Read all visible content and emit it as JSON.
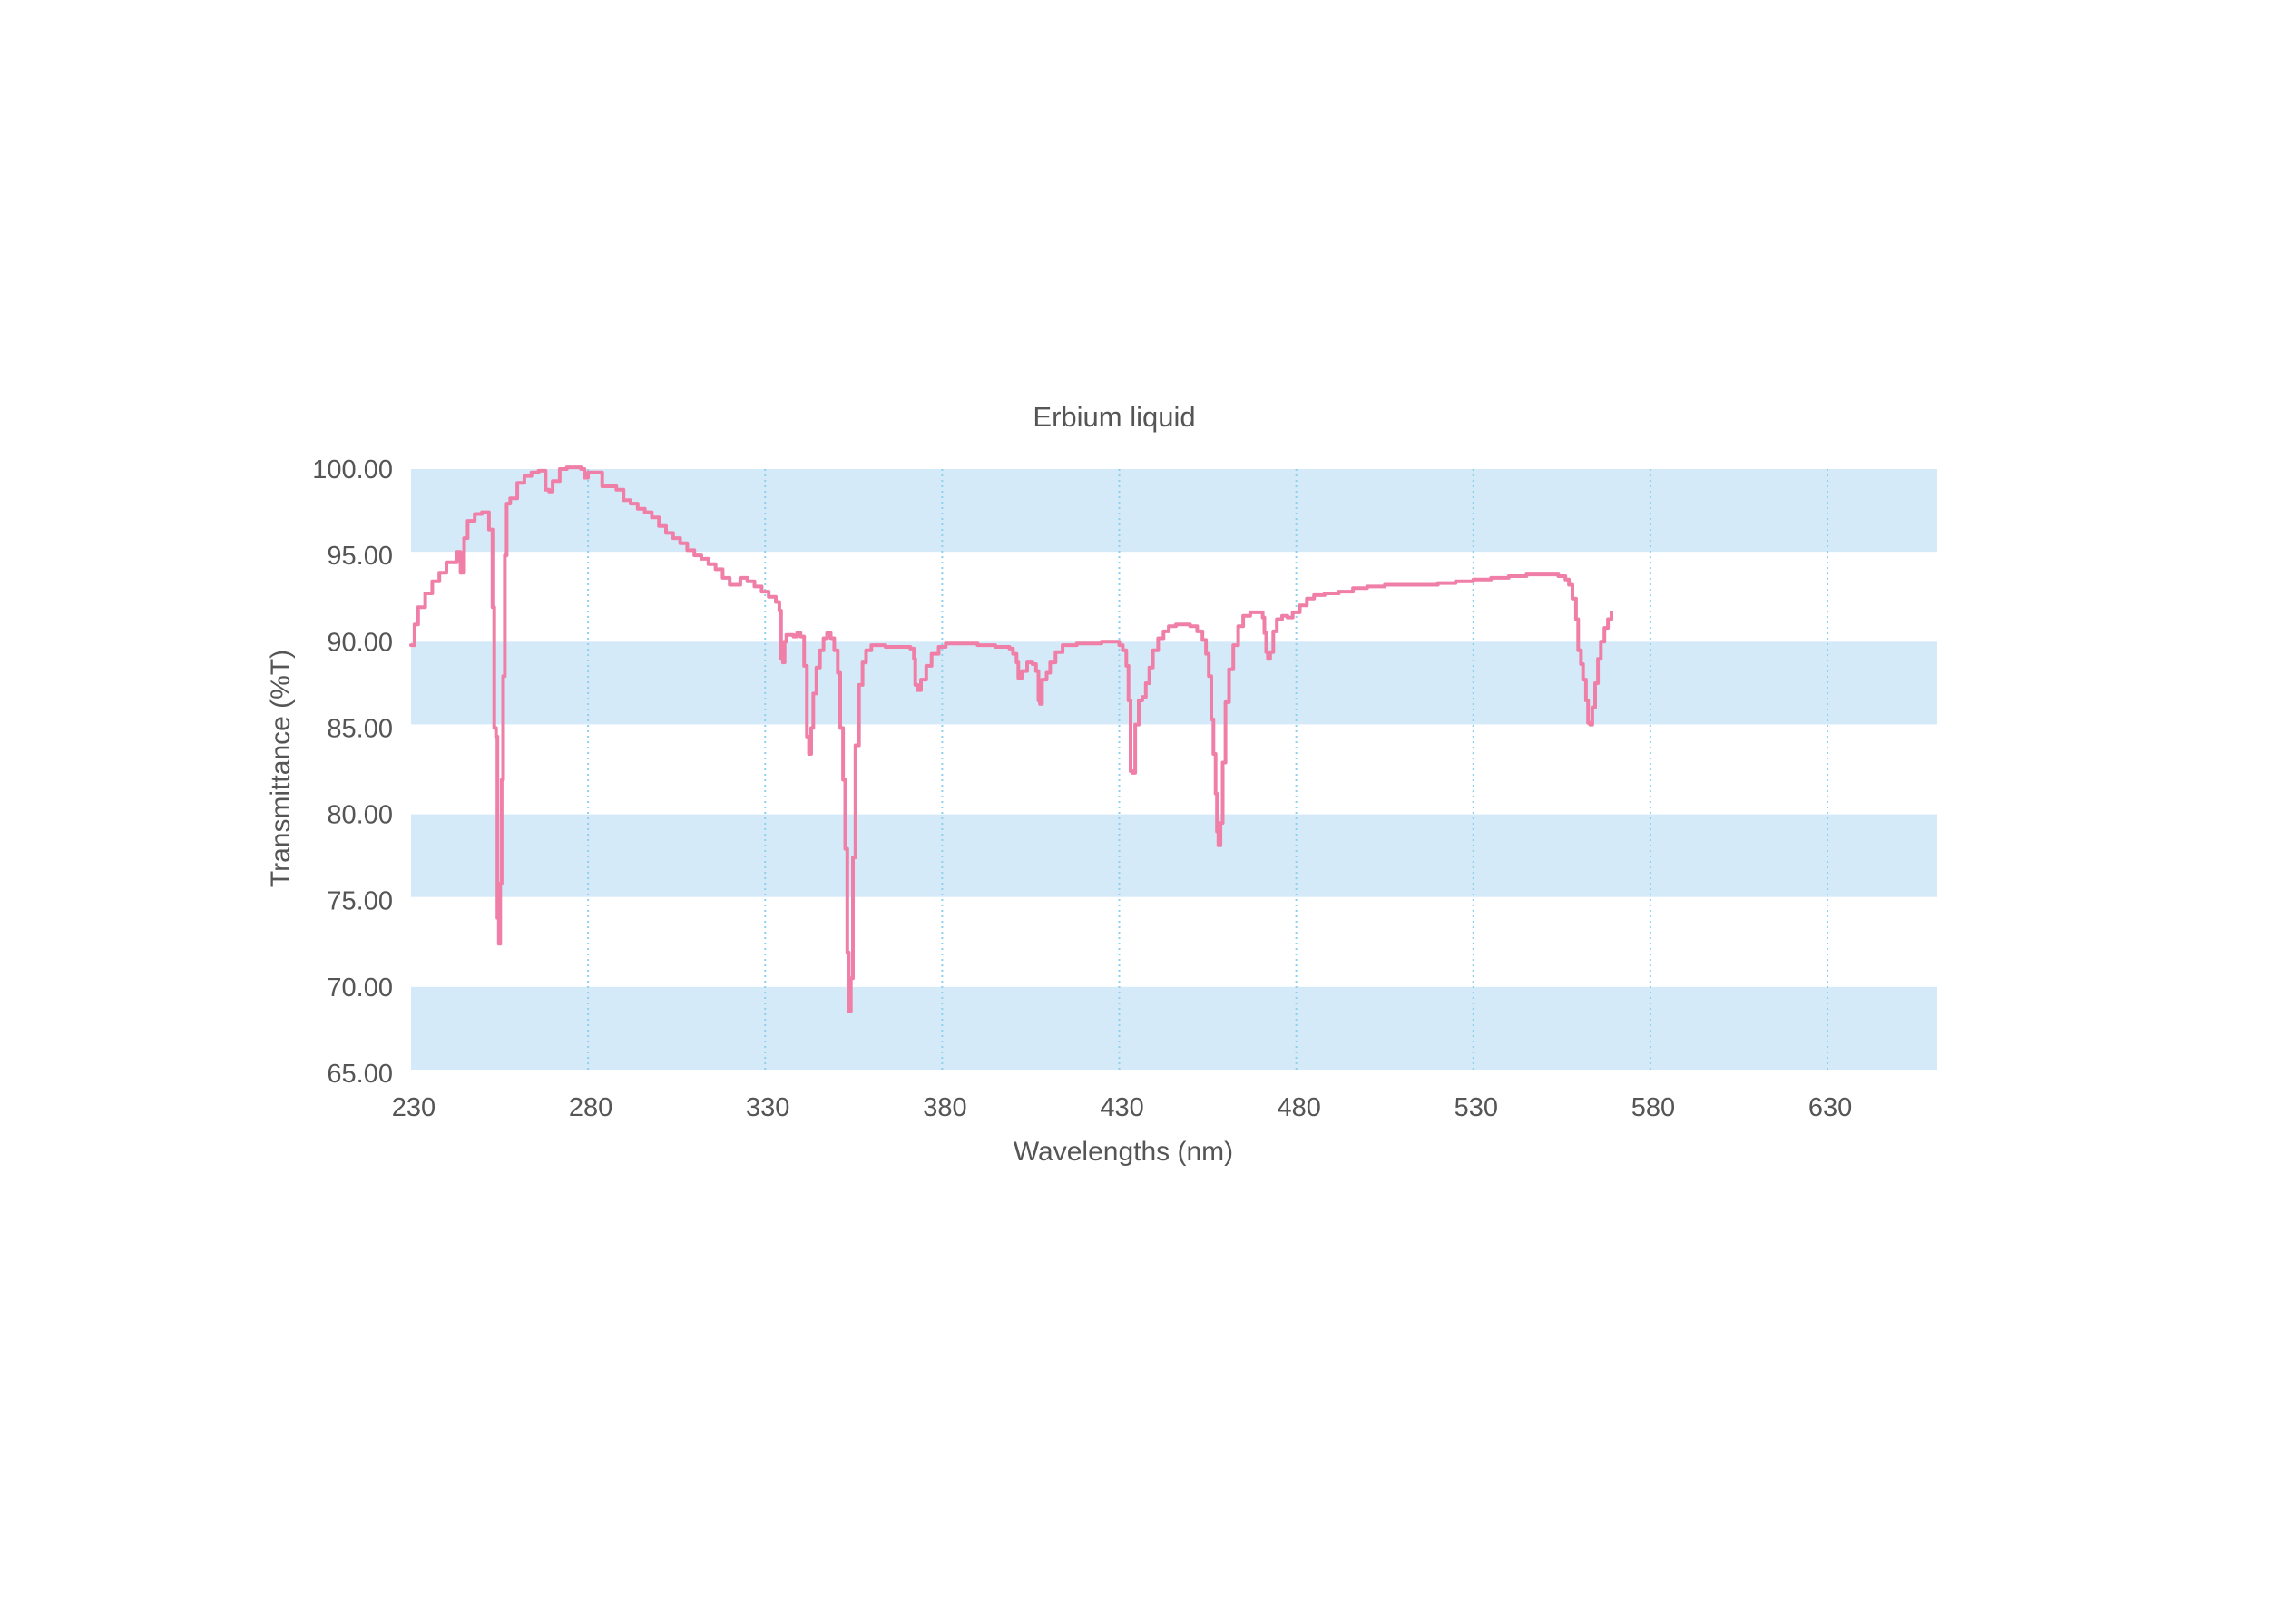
{
  "chart_data": {
    "type": "line",
    "title": "Erbium liquid",
    "xlabel": "Wavelengths (nm)",
    "ylabel": "Transmittance (%T)",
    "xlim": [
      230,
      661
    ],
    "ylim": [
      65,
      100
    ],
    "x_ticks": [
      230,
      280,
      330,
      380,
      430,
      480,
      530,
      580,
      630
    ],
    "y_ticks": [
      "65.00",
      "70.00",
      "75.00",
      "80.00",
      "85.00",
      "90.00",
      "95.00",
      "100.00"
    ],
    "grid": "vertical dotted lines at x ticks; alternating horizontal bands",
    "legend": "none",
    "colors": {
      "line": "#f07fa8",
      "band": "#d5eaf9",
      "grid": "#8fd0ec",
      "text": "#555555"
    },
    "series": [
      {
        "points": [
          [
            230,
            89.8
          ],
          [
            231,
            91.0
          ],
          [
            232,
            92.0
          ],
          [
            234,
            92.8
          ],
          [
            236,
            93.5
          ],
          [
            238,
            94.0
          ],
          [
            240,
            94.6
          ],
          [
            242,
            94.6
          ],
          [
            243,
            95.2
          ],
          [
            244,
            94.0
          ],
          [
            245,
            96.0
          ],
          [
            246,
            97.0
          ],
          [
            248,
            97.4
          ],
          [
            250,
            97.5
          ],
          [
            251,
            97.5
          ],
          [
            252,
            96.5
          ],
          [
            253,
            92.0
          ],
          [
            253.5,
            85.0
          ],
          [
            254,
            84.5
          ],
          [
            254.4,
            74.0
          ],
          [
            254.8,
            72.5
          ],
          [
            255.2,
            76.0
          ],
          [
            255.6,
            82.0
          ],
          [
            256,
            88.0
          ],
          [
            256.5,
            95.0
          ],
          [
            257,
            98.0
          ],
          [
            258,
            98.3
          ],
          [
            260,
            99.2
          ],
          [
            262,
            99.6
          ],
          [
            264,
            99.8
          ],
          [
            266,
            99.9
          ],
          [
            267,
            99.9
          ],
          [
            268,
            98.8
          ],
          [
            269,
            98.7
          ],
          [
            270,
            99.3
          ],
          [
            272,
            100.0
          ],
          [
            274,
            100.1
          ],
          [
            276,
            100.1
          ],
          [
            278,
            100.0
          ],
          [
            279,
            99.5
          ],
          [
            280,
            99.8
          ],
          [
            282,
            99.8
          ],
          [
            284,
            99.0
          ],
          [
            286,
            99.0
          ],
          [
            288,
            98.8
          ],
          [
            290,
            98.2
          ],
          [
            292,
            98.0
          ],
          [
            294,
            97.7
          ],
          [
            296,
            97.5
          ],
          [
            298,
            97.2
          ],
          [
            300,
            96.7
          ],
          [
            302,
            96.3
          ],
          [
            304,
            96.0
          ],
          [
            306,
            95.7
          ],
          [
            308,
            95.3
          ],
          [
            310,
            95.0
          ],
          [
            312,
            94.8
          ],
          [
            314,
            94.5
          ],
          [
            316,
            94.2
          ],
          [
            318,
            93.7
          ],
          [
            320,
            93.3
          ],
          [
            322,
            93.3
          ],
          [
            323,
            93.7
          ],
          [
            325,
            93.5
          ],
          [
            327,
            93.2
          ],
          [
            329,
            92.9
          ],
          [
            331,
            92.6
          ],
          [
            333,
            92.3
          ],
          [
            334,
            91.8
          ],
          [
            334.5,
            89.0
          ],
          [
            335,
            88.8
          ],
          [
            335.5,
            90.0
          ],
          [
            336,
            90.4
          ],
          [
            338,
            90.3
          ],
          [
            339,
            90.5
          ],
          [
            340,
            90.3
          ],
          [
            341,
            88.6
          ],
          [
            341.8,
            84.5
          ],
          [
            342.4,
            83.5
          ],
          [
            343,
            85.0
          ],
          [
            343.6,
            87.0
          ],
          [
            344.5,
            88.5
          ],
          [
            345.5,
            89.5
          ],
          [
            346.5,
            90.2
          ],
          [
            347.5,
            90.5
          ],
          [
            348.5,
            90.2
          ],
          [
            349.5,
            89.5
          ],
          [
            350.5,
            88.2
          ],
          [
            351.2,
            85.0
          ],
          [
            352,
            82.0
          ],
          [
            352.6,
            78.0
          ],
          [
            353.2,
            72.0
          ],
          [
            353.6,
            68.6
          ],
          [
            354.2,
            70.5
          ],
          [
            354.8,
            77.5
          ],
          [
            355.5,
            84.0
          ],
          [
            356.5,
            87.5
          ],
          [
            357.5,
            88.8
          ],
          [
            358.5,
            89.5
          ],
          [
            360,
            89.8
          ],
          [
            362,
            89.8
          ],
          [
            364,
            89.7
          ],
          [
            368,
            89.7
          ],
          [
            371,
            89.6
          ],
          [
            372,
            89.0
          ],
          [
            372.4,
            87.5
          ],
          [
            373,
            87.2
          ],
          [
            374,
            87.8
          ],
          [
            375.5,
            88.6
          ],
          [
            377,
            89.3
          ],
          [
            379,
            89.7
          ],
          [
            381,
            89.9
          ],
          [
            383,
            89.9
          ],
          [
            386,
            89.9
          ],
          [
            390,
            89.8
          ],
          [
            395,
            89.7
          ],
          [
            399,
            89.6
          ],
          [
            400,
            89.3
          ],
          [
            401,
            88.8
          ],
          [
            401.5,
            87.9
          ],
          [
            402.5,
            88.3
          ],
          [
            404,
            88.8
          ],
          [
            405.5,
            88.7
          ],
          [
            406.5,
            88.3
          ],
          [
            407.2,
            86.6
          ],
          [
            407.6,
            86.4
          ],
          [
            408.2,
            87.8
          ],
          [
            409.5,
            88.2
          ],
          [
            410.5,
            88.8
          ],
          [
            412,
            89.4
          ],
          [
            414,
            89.8
          ],
          [
            418,
            89.9
          ],
          [
            425,
            90.0
          ],
          [
            429,
            90.0
          ],
          [
            430,
            89.8
          ],
          [
            431,
            89.5
          ],
          [
            432,
            88.6
          ],
          [
            432.6,
            86.6
          ],
          [
            433.2,
            82.5
          ],
          [
            433.8,
            82.4
          ],
          [
            434.5,
            85.2
          ],
          [
            435.5,
            86.6
          ],
          [
            436.5,
            86.8
          ],
          [
            437.5,
            87.6
          ],
          [
            438.5,
            88.5
          ],
          [
            439.5,
            89.5
          ],
          [
            441,
            90.2
          ],
          [
            442.5,
            90.6
          ],
          [
            444,
            90.9
          ],
          [
            446,
            91.0
          ],
          [
            448,
            91.0
          ],
          [
            450,
            90.9
          ],
          [
            452,
            90.6
          ],
          [
            453.5,
            90.1
          ],
          [
            454.5,
            89.3
          ],
          [
            455.3,
            88.0
          ],
          [
            456,
            85.5
          ],
          [
            456.6,
            83.5
          ],
          [
            457.2,
            81.2
          ],
          [
            457.6,
            79.0
          ],
          [
            458,
            78.2
          ],
          [
            458.6,
            79.5
          ],
          [
            459.2,
            83.0
          ],
          [
            460,
            86.5
          ],
          [
            461,
            88.4
          ],
          [
            462.2,
            89.8
          ],
          [
            463.6,
            90.9
          ],
          [
            465,
            91.5
          ],
          [
            467,
            91.7
          ],
          [
            469,
            91.7
          ],
          [
            470.5,
            91.4
          ],
          [
            471,
            90.5
          ],
          [
            471.5,
            89.4
          ],
          [
            472,
            89.0
          ],
          [
            472.6,
            89.4
          ],
          [
            473.5,
            90.6
          ],
          [
            474.5,
            91.3
          ],
          [
            476,
            91.5
          ],
          [
            477.5,
            91.4
          ],
          [
            479,
            91.7
          ],
          [
            481,
            92.1
          ],
          [
            483,
            92.5
          ],
          [
            485,
            92.7
          ],
          [
            488,
            92.8
          ],
          [
            492,
            92.9
          ],
          [
            496,
            93.1
          ],
          [
            500,
            93.2
          ],
          [
            505,
            93.3
          ],
          [
            510,
            93.3
          ],
          [
            515,
            93.3
          ],
          [
            520,
            93.4
          ],
          [
            525,
            93.5
          ],
          [
            530,
            93.6
          ],
          [
            535,
            93.7
          ],
          [
            540,
            93.8
          ],
          [
            545,
            93.9
          ],
          [
            550,
            93.9
          ],
          [
            554,
            93.8
          ],
          [
            556,
            93.6
          ],
          [
            557,
            93.3
          ],
          [
            558,
            92.5
          ],
          [
            559,
            91.3
          ],
          [
            559.6,
            89.5
          ],
          [
            560.4,
            88.7
          ],
          [
            561,
            87.8
          ],
          [
            561.8,
            86.6
          ],
          [
            562.4,
            85.3
          ],
          [
            563,
            85.2
          ],
          [
            563.6,
            86.2
          ],
          [
            564.4,
            87.6
          ],
          [
            565.2,
            89.0
          ],
          [
            566,
            90.0
          ],
          [
            567,
            90.8
          ],
          [
            568,
            91.3
          ],
          [
            569,
            91.7
          ]
        ]
      }
    ]
  }
}
